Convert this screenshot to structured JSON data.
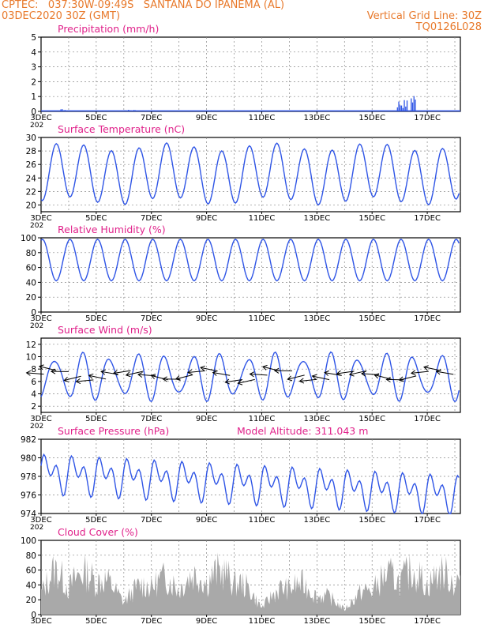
{
  "header": {
    "line1_left": "CPTEC:   037:30W-09:49S   SANTANA DO IPANEMA (AL)",
    "line2_left": "03DEC2020 30Z (GMT)",
    "line2_right": "Vertical Grid Line: 30Z",
    "line3_right": "TQ0126L028"
  },
  "colors": {
    "header": "#e8792b",
    "title": "#e0218a",
    "series": "#2f55e6",
    "cloud": "#a9a9a9",
    "arrow": "#000000"
  },
  "x_axis": {
    "ticks": [
      "3DEC",
      "5DEC",
      "7DEC",
      "9DEC",
      "11DEC",
      "13DEC",
      "15DEC",
      "17DEC"
    ],
    "cut_label": "202"
  },
  "chart_data": [
    {
      "type": "bar",
      "title": "Precipitation (mm/h)",
      "ylim": [
        0,
        5
      ],
      "yticks": [
        "0",
        "1",
        "2",
        "3",
        "4",
        "5"
      ],
      "bursts": [
        [
          0.7,
          0.9,
          0.2
        ],
        [
          3.0,
          3.4,
          0.1
        ],
        [
          6.0,
          6.3,
          0.08
        ],
        [
          9.4,
          10.3,
          0.05
        ],
        [
          12.9,
          13.3,
          0.7
        ],
        [
          13.4,
          13.6,
          1.3
        ]
      ]
    },
    {
      "type": "line",
      "title": "Surface Temperature (nC)",
      "ylim": [
        19,
        30
      ],
      "yticks": [
        "20",
        "22",
        "24",
        "26",
        "28",
        "30"
      ],
      "cycle": {
        "min": 20.6,
        "max": 28.6,
        "first_max_day": 0.55
      }
    },
    {
      "type": "line",
      "title": "Relative Humidity (%)",
      "ylim": [
        0,
        100
      ],
      "yticks": [
        "0",
        "20",
        "40",
        "60",
        "80",
        "100"
      ],
      "cycle": {
        "min": 42,
        "max": 98,
        "first_max_day": 0.05
      }
    },
    {
      "type": "line",
      "title": "Surface Wind (m/s)",
      "ylim": [
        1,
        13
      ],
      "yticks": [
        "2",
        "4",
        "6",
        "8",
        "10",
        "12"
      ],
      "cycle": {
        "min": 3.5,
        "max": 10,
        "first_max_day": 0.5
      },
      "vectors": "easterly wind arrows at about 7 m/s"
    },
    {
      "type": "line",
      "title": "Surface Pressure (hPa)",
      "subtitle": "Model Altitude: 311.043 m",
      "ylim": [
        974,
        982
      ],
      "yticks": [
        "974",
        "976",
        "978",
        "980",
        "982"
      ],
      "cycle": {
        "mean_start": 978.4,
        "mean_end": 976.1,
        "amplitude": 2.4
      }
    },
    {
      "type": "area",
      "title": "Cloud Cover (%)",
      "ylim": [
        0,
        100
      ],
      "yticks": [
        "0",
        "20",
        "40",
        "60",
        "80",
        "100"
      ],
      "envelope": [
        [
          0,
          60
        ],
        [
          0.5,
          90
        ],
        [
          1,
          75
        ],
        [
          2,
          90
        ],
        [
          3,
          35
        ],
        [
          4,
          75
        ],
        [
          5,
          70
        ],
        [
          6,
          88
        ],
        [
          7,
          85
        ],
        [
          8,
          20
        ],
        [
          9,
          70
        ],
        [
          10,
          50
        ],
        [
          11,
          15
        ],
        [
          12,
          65
        ],
        [
          13,
          90
        ],
        [
          14,
          80
        ],
        [
          15,
          85
        ]
      ]
    }
  ]
}
